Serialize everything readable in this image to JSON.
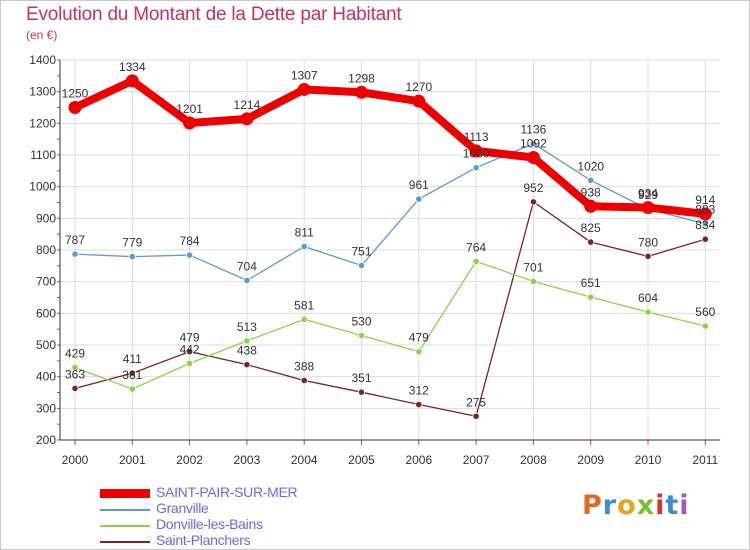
{
  "header": {
    "title": "Evolution du Montant de la Dette par Habitant",
    "unit": "(en €)"
  },
  "logo": {
    "text": "Proxiti",
    "letter_colors": [
      "#e06b1f",
      "#3a8fd0",
      "#e6a41e",
      "#7abf32",
      "#d8322a",
      "#3a8fd0",
      "#9c5fb5"
    ]
  },
  "chart_data": {
    "type": "line",
    "title": "Evolution du Montant de la Dette par Habitant",
    "xlabel": "",
    "ylabel": "(en €)",
    "x": [
      "2000",
      "2001",
      "2002",
      "2003",
      "2004",
      "2005",
      "2006",
      "2007",
      "2008",
      "2009",
      "2010",
      "2011"
    ],
    "ylim": [
      200,
      1400
    ],
    "yticks": [
      200,
      300,
      400,
      500,
      600,
      700,
      800,
      900,
      1000,
      1100,
      1200,
      1300,
      1400
    ],
    "grid": true,
    "legend_placement": "bottom-left",
    "series": [
      {
        "name": "SAINT-PAIR-SUR-MER",
        "color": "#ee0000",
        "values": [
          1250,
          1334,
          1201,
          1214,
          1307,
          1298,
          1270,
          1113,
          1092,
          938,
          934,
          914
        ]
      },
      {
        "name": "Granville",
        "color": "#5b9bd5",
        "values": [
          787,
          779,
          784,
          704,
          811,
          751,
          961,
          1060,
          1136,
          1020,
          929,
          883
        ]
      },
      {
        "name": "Donville-les-Bains",
        "color": "#8bd44a",
        "values": [
          429,
          361,
          442,
          513,
          581,
          530,
          479,
          764,
          701,
          651,
          604,
          560
        ]
      },
      {
        "name": "Saint-Planchers",
        "color": "#7a2424",
        "values": [
          363,
          411,
          479,
          438,
          388,
          351,
          312,
          275,
          952,
          825,
          780,
          834
        ]
      }
    ]
  }
}
